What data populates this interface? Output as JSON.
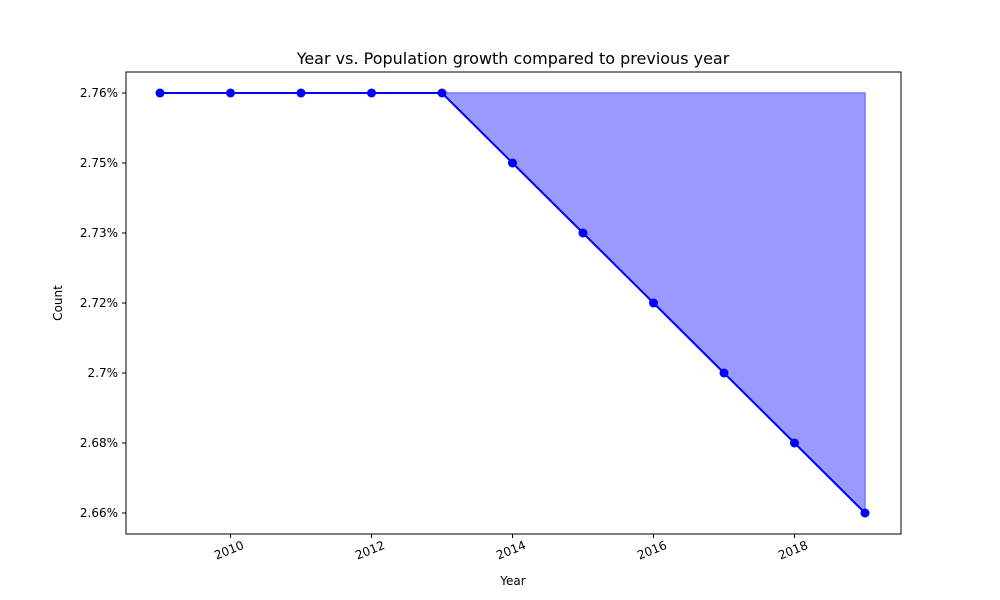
{
  "chart_data": {
    "type": "line",
    "title": "Year vs. Population growth compared to previous year",
    "xlabel": "Year",
    "ylabel": "Count",
    "x": [
      2009,
      2010,
      2011,
      2012,
      2013,
      2014,
      2015,
      2016,
      2017,
      2018,
      2019
    ],
    "series": [
      {
        "values": [
          2.76,
          2.76,
          2.76,
          2.76,
          2.76,
          2.75,
          2.73,
          2.72,
          2.7,
          2.68,
          2.66
        ]
      }
    ],
    "fill_between": {
      "from_x": 2013,
      "to_x": 2019,
      "upper": 2.76
    },
    "xticks": [
      2010,
      2012,
      2014,
      2016,
      2018
    ],
    "xtick_labels": [
      "2010",
      "2012",
      "2014",
      "2016",
      "2018"
    ],
    "ytick_labels": [
      "2.66%",
      "2.68%",
      "2.7%",
      "2.72%",
      "2.73%",
      "2.75%",
      "2.76%"
    ],
    "xlim": [
      2008.5,
      2019.5
    ],
    "grid": false,
    "line_color": "#0000ff",
    "marker_color": "#0000ff",
    "fill_color": "#9999ff",
    "fill_edge_color": "#7777ff"
  }
}
